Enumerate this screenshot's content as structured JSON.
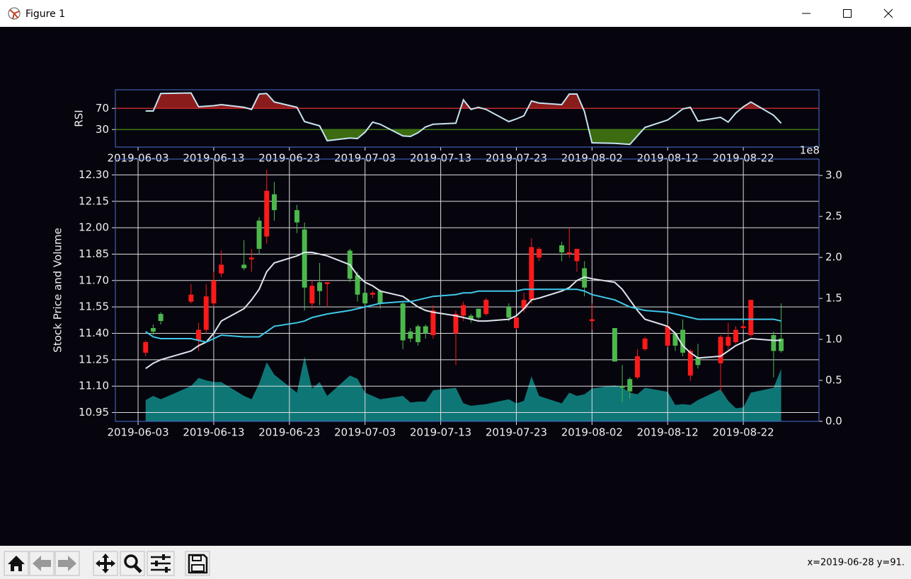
{
  "window": {
    "title": "Figure 1",
    "status": "x=2019-06-28 y=91."
  },
  "chart_data": [
    {
      "type": "line",
      "ylabel": "RSI",
      "x": [
        "2019-06-04",
        "2019-06-05",
        "2019-06-06",
        "2019-06-10",
        "2019-06-11",
        "2019-06-12",
        "2019-06-13",
        "2019-06-14",
        "2019-06-17",
        "2019-06-18",
        "2019-06-19",
        "2019-06-20",
        "2019-06-21",
        "2019-06-24",
        "2019-06-25",
        "2019-06-26",
        "2019-06-27",
        "2019-06-28",
        "2019-07-01",
        "2019-07-02",
        "2019-07-03",
        "2019-07-04",
        "2019-07-05",
        "2019-07-08",
        "2019-07-09",
        "2019-07-10",
        "2019-07-11",
        "2019-07-12",
        "2019-07-15",
        "2019-07-16",
        "2019-07-17",
        "2019-07-18",
        "2019-07-19",
        "2019-07-22",
        "2019-07-23",
        "2019-07-24",
        "2019-07-25",
        "2019-07-26",
        "2019-07-29",
        "2019-07-30",
        "2019-07-31",
        "2019-08-01",
        "2019-08-02",
        "2019-08-05",
        "2019-08-06",
        "2019-08-07",
        "2019-08-08",
        "2019-08-09",
        "2019-08-12",
        "2019-08-13",
        "2019-08-14",
        "2019-08-15",
        "2019-08-16",
        "2019-08-19",
        "2019-08-20",
        "2019-08-21",
        "2019-08-22",
        "2019-08-23",
        "2019-08-26",
        "2019-08-27"
      ],
      "series": [
        {
          "color": "#c6e4f0",
          "values": [
            65,
            65,
            98,
            99,
            73,
            74,
            75,
            77,
            72,
            68,
            97,
            98,
            82,
            72,
            45,
            41,
            37,
            9,
            14,
            13,
            25,
            44,
            40,
            18,
            17,
            24,
            35,
            40,
            42,
            86,
            68,
            72,
            68,
            45,
            50,
            56,
            84,
            80,
            77,
            97,
            97,
            64,
            5,
            4,
            3,
            2,
            18,
            34,
            48,
            58,
            69,
            72,
            46,
            53,
            44,
            61,
            73,
            82,
            57,
            42
          ]
        }
      ],
      "thresholds": [
        {
          "value": 70,
          "color": "#c0282d",
          "fill_color": "#8b1c1c",
          "side": "above"
        },
        {
          "value": 30,
          "color": "#3d7a14",
          "fill_color": "#3c6b10",
          "side": "below"
        }
      ],
      "xlim": [
        "2019-05-31",
        "2019-09-01"
      ],
      "xticks": [
        "2019-06-03",
        "2019-06-13",
        "2019-06-23",
        "2019-07-03",
        "2019-07-13",
        "2019-07-23",
        "2019-08-02",
        "2019-08-12",
        "2019-08-22"
      ],
      "ylim": [
        -3,
        105
      ],
      "yticks": [
        30,
        70
      ],
      "grid": false
    },
    {
      "type": "candlestick",
      "ylabel": "Stock Price and Volume",
      "y2_offset_label": "1e8",
      "x": [
        "2019-06-04",
        "2019-06-05",
        "2019-06-06",
        "2019-06-10",
        "2019-06-11",
        "2019-06-12",
        "2019-06-13",
        "2019-06-14",
        "2019-06-17",
        "2019-06-18",
        "2019-06-19",
        "2019-06-20",
        "2019-06-21",
        "2019-06-24",
        "2019-06-25",
        "2019-06-26",
        "2019-06-27",
        "2019-06-28",
        "2019-07-01",
        "2019-07-02",
        "2019-07-03",
        "2019-07-04",
        "2019-07-05",
        "2019-07-08",
        "2019-07-09",
        "2019-07-10",
        "2019-07-11",
        "2019-07-12",
        "2019-07-15",
        "2019-07-16",
        "2019-07-17",
        "2019-07-18",
        "2019-07-19",
        "2019-07-22",
        "2019-07-23",
        "2019-07-24",
        "2019-07-25",
        "2019-07-26",
        "2019-07-29",
        "2019-07-30",
        "2019-07-31",
        "2019-08-01",
        "2019-08-02",
        "2019-08-05",
        "2019-08-06",
        "2019-08-07",
        "2019-08-08",
        "2019-08-09",
        "2019-08-12",
        "2019-08-13",
        "2019-08-14",
        "2019-08-15",
        "2019-08-16",
        "2019-08-19",
        "2019-08-20",
        "2019-08-21",
        "2019-08-22",
        "2019-08-23",
        "2019-08-26",
        "2019-08-27"
      ],
      "open": [
        11.29,
        11.43,
        11.51,
        11.58,
        11.36,
        11.42,
        11.57,
        11.74,
        11.79,
        11.82,
        12.04,
        11.95,
        12.19,
        12.1,
        11.99,
        11.57,
        11.69,
        11.68,
        11.87,
        11.73,
        11.63,
        11.62,
        11.64,
        11.57,
        11.41,
        11.44,
        11.44,
        11.39,
        11.4,
        11.5,
        11.5,
        11.54,
        11.51,
        11.55,
        11.43,
        11.54,
        11.59,
        11.83,
        11.9,
        11.85,
        11.81,
        11.77,
        11.47,
        11.43,
        11.1,
        11.14,
        11.15,
        11.31,
        11.33,
        11.4,
        11.42,
        11.16,
        11.26,
        11.23,
        11.33,
        11.35,
        11.43,
        11.39,
        11.39,
        11.37
      ],
      "high": [
        11.36,
        11.45,
        11.52,
        11.68,
        11.46,
        11.68,
        11.75,
        11.87,
        11.93,
        11.88,
        12.06,
        12.33,
        12.26,
        12.13,
        12.03,
        11.7,
        11.8,
        11.69,
        11.88,
        11.75,
        11.63,
        11.64,
        11.65,
        11.58,
        11.43,
        11.45,
        11.45,
        11.56,
        11.53,
        11.58,
        11.51,
        11.54,
        11.6,
        11.57,
        11.5,
        11.63,
        11.94,
        11.89,
        11.92,
        12.0,
        11.88,
        11.81,
        11.57,
        11.43,
        11.22,
        11.15,
        11.31,
        11.38,
        11.45,
        11.41,
        11.48,
        11.31,
        11.34,
        11.39,
        11.46,
        11.44,
        11.46,
        11.59,
        11.41,
        11.57
      ],
      "low": [
        11.27,
        11.39,
        11.45,
        11.57,
        11.3,
        11.4,
        11.55,
        11.72,
        11.76,
        11.75,
        11.85,
        11.91,
        12.04,
        11.97,
        11.53,
        11.54,
        11.56,
        11.55,
        11.69,
        11.58,
        11.56,
        11.6,
        11.54,
        11.31,
        11.35,
        11.33,
        11.37,
        11.37,
        11.22,
        11.47,
        11.46,
        11.48,
        11.5,
        11.47,
        11.42,
        11.52,
        11.57,
        11.81,
        11.81,
        11.83,
        11.75,
        11.61,
        11.42,
        11.24,
        11.01,
        11.03,
        11.14,
        11.3,
        11.32,
        11.3,
        11.27,
        11.13,
        11.2,
        11.07,
        11.31,
        11.34,
        11.42,
        11.38,
        11.15,
        11.29
      ],
      "close": [
        11.35,
        11.41,
        11.47,
        11.62,
        11.42,
        11.61,
        11.7,
        11.79,
        11.77,
        11.83,
        11.88,
        12.21,
        12.1,
        12.03,
        11.66,
        11.67,
        11.64,
        11.69,
        11.71,
        11.62,
        11.57,
        11.63,
        11.57,
        11.36,
        11.37,
        11.35,
        11.4,
        11.53,
        11.51,
        11.56,
        11.48,
        11.49,
        11.59,
        11.49,
        11.49,
        11.59,
        11.89,
        11.88,
        11.86,
        11.86,
        11.88,
        11.66,
        11.48,
        11.24,
        11.09,
        11.07,
        11.27,
        11.37,
        11.44,
        11.33,
        11.29,
        11.3,
        11.22,
        11.38,
        11.38,
        11.42,
        11.44,
        11.59,
        11.3,
        11.3
      ],
      "up_color": "#ff1a1a",
      "down_color": "#4cb84c",
      "series": [
        {
          "color": "#dfe4ee",
          "values": [
            11.2,
            11.23,
            11.25,
            11.3,
            11.33,
            11.35,
            11.4,
            11.47,
            11.54,
            11.59,
            11.65,
            11.75,
            11.8,
            11.84,
            11.86,
            11.86,
            11.85,
            11.84,
            11.79,
            11.73,
            11.69,
            11.67,
            11.64,
            11.61,
            11.58,
            11.55,
            11.53,
            11.52,
            11.5,
            11.49,
            11.48,
            11.47,
            11.47,
            11.48,
            11.5,
            11.54,
            11.59,
            11.6,
            11.64,
            11.66,
            11.7,
            11.72,
            11.71,
            11.69,
            11.65,
            11.59,
            11.53,
            11.48,
            11.44,
            11.4,
            11.33,
            11.29,
            11.26,
            11.27,
            11.3,
            11.33,
            11.35,
            11.37,
            11.36,
            11.36
          ]
        },
        {
          "color": "#40c8e8",
          "values": [
            11.41,
            11.38,
            11.37,
            11.37,
            11.36,
            11.35,
            11.37,
            11.39,
            11.38,
            11.38,
            11.38,
            11.41,
            11.44,
            11.46,
            11.47,
            11.49,
            11.5,
            11.51,
            11.53,
            11.54,
            11.55,
            11.56,
            11.57,
            11.58,
            11.58,
            11.59,
            11.6,
            11.61,
            11.62,
            11.63,
            11.63,
            11.64,
            11.64,
            11.64,
            11.64,
            11.65,
            11.65,
            11.65,
            11.65,
            11.65,
            11.65,
            11.64,
            11.62,
            11.59,
            11.57,
            11.55,
            11.54,
            11.53,
            11.52,
            11.51,
            11.5,
            11.49,
            11.48,
            11.48,
            11.48,
            11.48,
            11.48,
            11.48,
            11.48,
            11.47
          ]
        },
        {
          "color": "#0f7676",
          "axis": "y2",
          "fill": true,
          "values": [
            0.26,
            0.31,
            0.27,
            0.43,
            0.53,
            0.5,
            0.48,
            0.48,
            0.31,
            0.27,
            0.46,
            0.72,
            0.57,
            0.35,
            0.79,
            0.4,
            0.48,
            0.31,
            0.56,
            0.52,
            0.35,
            0.31,
            0.27,
            0.31,
            0.23,
            0.24,
            0.24,
            0.38,
            0.41,
            0.22,
            0.19,
            0.2,
            0.21,
            0.27,
            0.22,
            0.25,
            0.55,
            0.31,
            0.22,
            0.35,
            0.31,
            0.33,
            0.4,
            0.44,
            0.41,
            0.35,
            0.33,
            0.41,
            0.36,
            0.2,
            0.21,
            0.2,
            0.26,
            0.39,
            0.25,
            0.16,
            0.17,
            0.35,
            0.41,
            0.64
          ]
        }
      ],
      "xlim": [
        "2019-05-31",
        "2019-09-01"
      ],
      "xticks": [
        "2019-06-03",
        "2019-06-13",
        "2019-06-23",
        "2019-07-03",
        "2019-07-13",
        "2019-07-23",
        "2019-08-02",
        "2019-08-12",
        "2019-08-22"
      ],
      "ylim": [
        10.9,
        12.39
      ],
      "yticks": [
        10.95,
        {
          "value": 11.1,
          "label": "11.10"
        },
        11.25,
        {
          "value": 11.4,
          "label": "11.40"
        },
        11.55,
        {
          "value": 11.7,
          "label": "11.70"
        },
        11.85,
        {
          "value": 12,
          "label": "12.00"
        },
        12.15,
        {
          "value": 12.3,
          "label": "12.30"
        }
      ],
      "y2lim": [
        0,
        3.2
      ],
      "y2ticks": [
        {
          "value": 0,
          "label": "0.0"
        },
        0.5,
        {
          "value": 1,
          "label": "1.0"
        },
        1.5,
        {
          "value": 2,
          "label": "2.0"
        },
        2.5,
        {
          "value": 3,
          "label": "3.0"
        }
      ],
      "grid": true
    }
  ]
}
